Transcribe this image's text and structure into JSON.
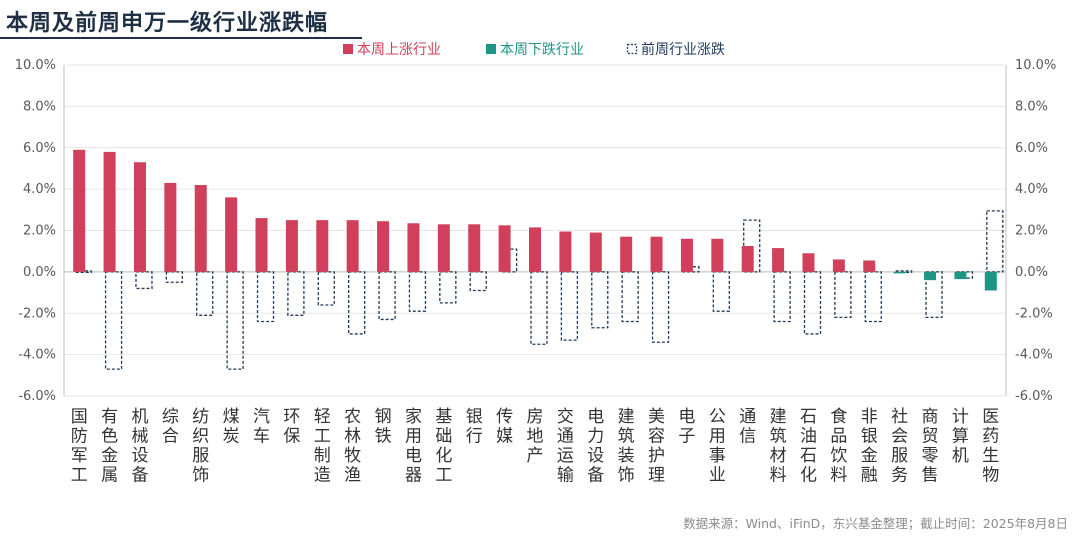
{
  "header": {
    "title": "本周及前周申万一级行业涨跌幅"
  },
  "footer": {
    "source": "数据来源：Wind、iFinD，东兴基金整理；截止时间：2025年8月8日"
  },
  "chart_data": {
    "type": "bar",
    "title": "本周及前周申万一级行业涨跌幅",
    "categories": [
      "国防军工",
      "有色金属",
      "机械设备",
      "综合",
      "纺织服饰",
      "煤炭",
      "汽车",
      "环保",
      "轻工制造",
      "农林牧渔",
      "钢铁",
      "家用电器",
      "基础化工",
      "银行",
      "传媒",
      "房地产",
      "交通运输",
      "电力设备",
      "建筑装饰",
      "美容护理",
      "电子",
      "公用事业",
      "通信",
      "建筑材料",
      "石油石化",
      "食品饮料",
      "非银金融",
      "社会服务",
      "商贸零售",
      "计算机",
      "医药生物"
    ],
    "series": [
      {
        "name": "本周上涨行业",
        "color": "#d0405a",
        "values": [
          5.9,
          5.8,
          5.3,
          4.3,
          4.2,
          3.6,
          2.6,
          2.5,
          2.5,
          2.5,
          2.45,
          2.35,
          2.3,
          2.3,
          2.25,
          2.15,
          1.95,
          1.9,
          1.7,
          1.7,
          1.6,
          1.6,
          1.25,
          1.15,
          0.9,
          0.6,
          0.55,
          null,
          null,
          null,
          null
        ]
      },
      {
        "name": "本周下跌行业",
        "color": "#1f9685",
        "values": [
          null,
          null,
          null,
          null,
          null,
          null,
          null,
          null,
          null,
          null,
          null,
          null,
          null,
          null,
          null,
          null,
          null,
          null,
          null,
          null,
          null,
          null,
          null,
          null,
          null,
          null,
          null,
          -0.05,
          -0.4,
          -0.35,
          -0.9
        ]
      },
      {
        "name": "前周行业涨跌",
        "color": "#1f3a5a",
        "values": [
          0.05,
          -4.7,
          -0.8,
          -0.5,
          -2.1,
          -4.7,
          -2.4,
          -2.1,
          -1.6,
          -3.0,
          -2.3,
          -1.9,
          -1.5,
          -0.9,
          1.1,
          -3.5,
          -3.3,
          -2.7,
          -2.4,
          -3.4,
          0.25,
          -1.9,
          2.5,
          -2.4,
          -3.0,
          -2.2,
          -2.4,
          0.05,
          -2.2,
          -0.3,
          2.95
        ]
      }
    ],
    "ylim": [
      -6,
      10
    ],
    "yticks": [
      "10.0%",
      "8.0%",
      "6.0%",
      "4.0%",
      "2.0%",
      "0.0%",
      "-2.0%",
      "-4.0%",
      "-6.0%"
    ],
    "ytick_values": [
      10,
      8,
      6,
      4,
      2,
      0,
      -2,
      -4,
      -6
    ],
    "xlabel": "",
    "ylabel": "",
    "grid": true,
    "legend_position": "top-center"
  }
}
